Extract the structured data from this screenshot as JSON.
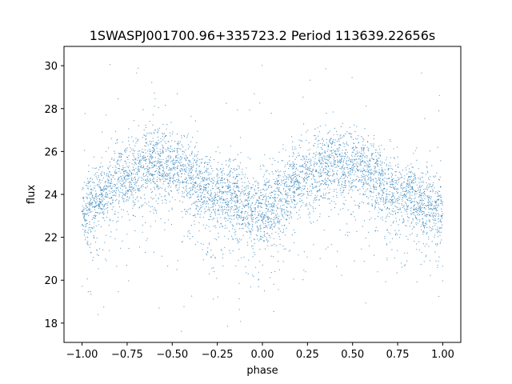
{
  "chart_data": {
    "type": "scatter",
    "title": "1SWASPJ001700.96+335723.2 Period 113639.22656s",
    "xlabel": "phase",
    "ylabel": "flux",
    "xlim": [
      -1.1,
      1.1
    ],
    "ylim": [
      17.1,
      30.9
    ],
    "xticks": [
      -1.0,
      -0.75,
      -0.5,
      -0.25,
      0.0,
      0.25,
      0.5,
      0.75,
      1.0
    ],
    "xtick_labels": [
      "−1.00",
      "−0.75",
      "−0.50",
      "−0.25",
      "0.00",
      "0.25",
      "0.50",
      "0.75",
      "1.00"
    ],
    "yticks": [
      18,
      20,
      22,
      24,
      26,
      28,
      30
    ],
    "ytick_labels": [
      "18",
      "20",
      "22",
      "24",
      "26",
      "28",
      "30"
    ],
    "grid": false,
    "point_color": "#1f77b4",
    "curve": {
      "description_phase": [
        -1.0,
        -0.75,
        -0.6,
        -0.5,
        -0.25,
        0.0,
        0.25,
        0.4,
        0.5,
        0.75,
        1.0
      ],
      "mean_flux": [
        23.3,
        24.9,
        25.5,
        25.3,
        24.0,
        23.2,
        24.9,
        25.5,
        25.3,
        24.0,
        23.3
      ]
    },
    "series": [
      {
        "values": [
          [
            -1.0,
            23.2
          ],
          [
            -0.98,
            22.6
          ],
          [
            -0.96,
            24.0
          ],
          [
            -0.95,
            21.3
          ],
          [
            -0.93,
            23.8
          ],
          [
            -0.9,
            24.3
          ],
          [
            -0.88,
            22.9
          ],
          [
            -0.85,
            24.8
          ],
          [
            -0.83,
            23.6
          ],
          [
            -0.8,
            25.2
          ],
          [
            -0.78,
            24.6
          ],
          [
            -0.75,
            25.0
          ],
          [
            -0.72,
            25.9
          ],
          [
            -0.7,
            24.4
          ],
          [
            -0.67,
            25.6
          ],
          [
            -0.65,
            25.2
          ],
          [
            -0.62,
            26.0
          ],
          [
            -0.6,
            25.4
          ],
          [
            -0.57,
            25.8
          ],
          [
            -0.55,
            24.9
          ],
          [
            -0.52,
            25.6
          ],
          [
            -0.5,
            26.1
          ],
          [
            -0.47,
            25.0
          ],
          [
            -0.45,
            25.5
          ],
          [
            -0.42,
            24.6
          ],
          [
            -0.4,
            25.2
          ],
          [
            -0.37,
            24.3
          ],
          [
            -0.35,
            24.9
          ],
          [
            -0.32,
            23.9
          ],
          [
            -0.3,
            24.5
          ],
          [
            -0.27,
            23.6
          ],
          [
            -0.25,
            24.0
          ],
          [
            -0.22,
            23.3
          ],
          [
            -0.2,
            23.8
          ],
          [
            -0.17,
            23.0
          ],
          [
            -0.15,
            23.6
          ],
          [
            -0.12,
            22.9
          ],
          [
            -0.1,
            23.4
          ],
          [
            -0.07,
            22.6
          ],
          [
            -0.05,
            23.2
          ],
          [
            -0.02,
            22.8
          ],
          [
            0.0,
            23.1
          ],
          [
            0.02,
            22.5
          ],
          [
            0.05,
            23.3
          ],
          [
            0.07,
            23.8
          ],
          [
            0.1,
            24.1
          ],
          [
            0.12,
            23.5
          ],
          [
            0.15,
            24.4
          ],
          [
            0.17,
            24.9
          ],
          [
            0.2,
            24.6
          ],
          [
            0.22,
            25.3
          ],
          [
            0.25,
            24.8
          ],
          [
            0.27,
            25.6
          ],
          [
            0.3,
            25.1
          ],
          [
            0.32,
            25.9
          ],
          [
            0.35,
            25.3
          ],
          [
            0.37,
            25.8
          ],
          [
            0.4,
            25.4
          ],
          [
            0.42,
            26.0
          ],
          [
            0.45,
            25.2
          ],
          [
            0.47,
            25.7
          ],
          [
            0.5,
            25.1
          ],
          [
            0.52,
            25.9
          ],
          [
            0.55,
            24.8
          ],
          [
            0.57,
            25.5
          ],
          [
            0.6,
            24.6
          ],
          [
            0.62,
            25.3
          ],
          [
            0.65,
            24.4
          ],
          [
            0.67,
            24.9
          ],
          [
            0.7,
            24.0
          ],
          [
            0.72,
            24.6
          ],
          [
            0.75,
            23.8
          ],
          [
            0.77,
            24.3
          ],
          [
            0.8,
            23.5
          ],
          [
            0.82,
            24.1
          ],
          [
            0.85,
            23.2
          ],
          [
            0.87,
            23.9
          ],
          [
            0.9,
            23.0
          ],
          [
            0.92,
            23.6
          ],
          [
            0.95,
            22.8
          ],
          [
            0.97,
            23.4
          ],
          [
            1.0,
            23.1
          ]
        ]
      }
    ]
  }
}
